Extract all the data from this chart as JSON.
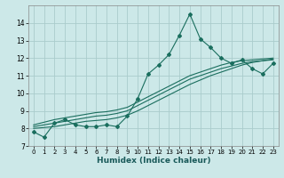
{
  "xlabel": "Humidex (Indice chaleur)",
  "ylabel": "",
  "background_color": "#cce8e8",
  "grid_color": "#aacccc",
  "line_color": "#1a6e5e",
  "xlim": [
    -0.5,
    23.5
  ],
  "ylim": [
    7,
    15
  ],
  "yticks": [
    7,
    8,
    9,
    10,
    11,
    12,
    13,
    14
  ],
  "xticks": [
    0,
    1,
    2,
    3,
    4,
    5,
    6,
    7,
    8,
    9,
    10,
    11,
    12,
    13,
    14,
    15,
    16,
    17,
    18,
    19,
    20,
    21,
    22,
    23
  ],
  "series": [
    [
      7.8,
      7.5,
      8.3,
      8.5,
      8.2,
      8.1,
      8.1,
      8.2,
      8.1,
      8.7,
      9.7,
      11.1,
      11.6,
      12.2,
      13.3,
      14.5,
      13.1,
      12.6,
      12.0,
      11.7,
      11.9,
      11.4,
      11.1,
      11.7
    ],
    [
      8.0,
      8.05,
      8.1,
      8.2,
      8.3,
      8.4,
      8.45,
      8.5,
      8.6,
      8.75,
      9.0,
      9.3,
      9.6,
      9.9,
      10.2,
      10.5,
      10.75,
      11.0,
      11.2,
      11.4,
      11.6,
      11.75,
      11.85,
      11.95
    ],
    [
      8.1,
      8.2,
      8.3,
      8.4,
      8.5,
      8.6,
      8.7,
      8.75,
      8.85,
      9.0,
      9.3,
      9.6,
      9.9,
      10.2,
      10.5,
      10.8,
      11.0,
      11.2,
      11.4,
      11.55,
      11.7,
      11.8,
      11.85,
      11.9
    ],
    [
      8.2,
      8.35,
      8.5,
      8.6,
      8.7,
      8.8,
      8.9,
      8.95,
      9.05,
      9.2,
      9.5,
      9.8,
      10.1,
      10.4,
      10.7,
      11.0,
      11.2,
      11.4,
      11.6,
      11.75,
      11.85,
      11.9,
      11.95,
      12.0
    ]
  ],
  "has_markers": [
    true,
    false,
    false,
    false
  ]
}
